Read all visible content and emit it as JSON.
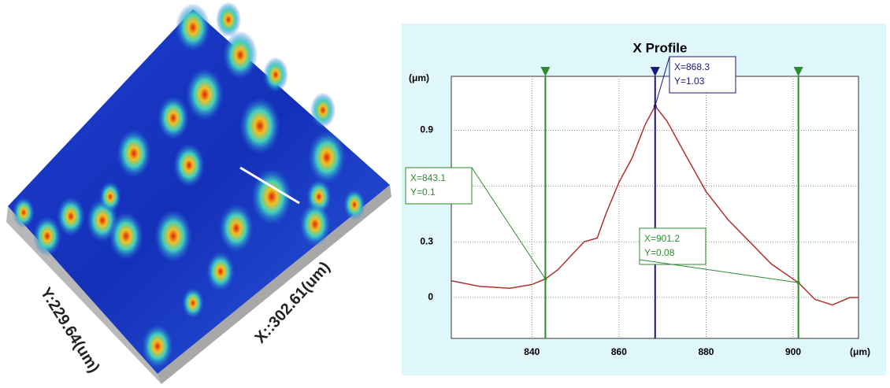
{
  "surface": {
    "x_label": "X::302.61(um)",
    "y_label": "Y:229.64(um)"
  },
  "chart_data": {
    "type": "line",
    "title": "X Profile",
    "y_unit": "(μm)",
    "x_unit": "(μm)",
    "x": [
      821.5,
      828,
      835,
      840,
      843.1,
      846,
      850,
      852,
      855,
      857,
      860,
      863,
      866,
      868.3,
      871,
      875,
      880,
      885,
      890,
      895,
      901.2,
      905,
      909,
      913,
      915
    ],
    "values": [
      0.09,
      0.06,
      0.05,
      0.07,
      0.1,
      0.15,
      0.25,
      0.3,
      0.32,
      0.45,
      0.62,
      0.75,
      0.93,
      1.03,
      0.95,
      0.78,
      0.57,
      0.42,
      0.3,
      0.18,
      0.08,
      -0.01,
      -0.04,
      0.0,
      0.0
    ],
    "color": "#b03030",
    "xlim": [
      821.5,
      915
    ],
    "ylim": [
      -0.22,
      1.19
    ],
    "xticks": [
      840,
      860,
      880,
      900
    ],
    "yticks": [
      0,
      0.3,
      0.6,
      0.9
    ],
    "grid": true,
    "cursors": [
      {
        "x": 843.1,
        "y": 0.1,
        "label_x": "X=843.1",
        "label_y": "Y=0.1",
        "color": "#2e8b2e"
      },
      {
        "x": 868.3,
        "y": 1.03,
        "label_x": "X=868.3",
        "label_y": "Y=1.03",
        "color": "#1a1a7a"
      },
      {
        "x": 901.2,
        "y": 0.08,
        "label_x": "X=901.2",
        "label_y": "Y=0.08",
        "color": "#2e8b2e"
      }
    ]
  }
}
